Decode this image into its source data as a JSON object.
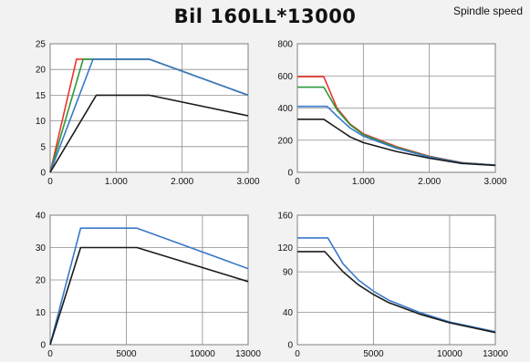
{
  "header": {
    "title": "Bil 160LL*13000",
    "corner_label": "Spindle speed"
  },
  "colors": {
    "red": "#e8352b",
    "green": "#2a9a3c",
    "blue": "#3a78c8",
    "black": "#1a1a1a",
    "grid": "#8c8c8c",
    "plot_bg": "#ffffff"
  },
  "chart_data": [
    {
      "type": "line",
      "title": "",
      "xlabel": "",
      "ylabel": "",
      "xlim": [
        0,
        3000
      ],
      "ylim": [
        0,
        25
      ],
      "xticks": [
        0,
        1000,
        2000,
        3000
      ],
      "xtick_labels": [
        "0",
        "1.000",
        "2.000",
        "3.000"
      ],
      "yticks": [
        0,
        5,
        10,
        15,
        20,
        25
      ],
      "ytick_labels": [
        "0",
        "5",
        "10",
        "15",
        "20",
        "25"
      ],
      "series": [
        {
          "color": "red",
          "x": [
            0,
            400,
            1500,
            3000
          ],
          "y": [
            0,
            22,
            22,
            15
          ]
        },
        {
          "color": "green",
          "x": [
            0,
            500,
            1500,
            3000
          ],
          "y": [
            0,
            22,
            22,
            15
          ]
        },
        {
          "color": "blue",
          "x": [
            0,
            650,
            1500,
            3000
          ],
          "y": [
            0,
            22,
            22,
            15
          ]
        },
        {
          "color": "black",
          "x": [
            0,
            700,
            1500,
            3000
          ],
          "y": [
            0,
            15,
            15,
            11
          ]
        }
      ]
    },
    {
      "type": "line",
      "title": "",
      "xlabel": "",
      "ylabel": "",
      "xlim": [
        0,
        3000
      ],
      "ylim": [
        0,
        800
      ],
      "xticks": [
        0,
        1000,
        2000,
        3000
      ],
      "xtick_labels": [
        "0",
        "1.000",
        "2.000",
        "3.000"
      ],
      "yticks": [
        0,
        200,
        400,
        600,
        800
      ],
      "ytick_labels": [
        "0",
        "200",
        "400",
        "600",
        "800"
      ],
      "series": [
        {
          "color": "red",
          "x": [
            0,
            400,
            600,
            800,
            1000,
            1500,
            2000,
            2500,
            3000
          ],
          "y": [
            595,
            595,
            400,
            300,
            240,
            160,
            100,
            60,
            45
          ]
        },
        {
          "color": "green",
          "x": [
            0,
            400,
            600,
            800,
            1000,
            1500,
            2000,
            2500,
            3000
          ],
          "y": [
            530,
            530,
            390,
            295,
            235,
            155,
            97,
            59,
            45
          ]
        },
        {
          "color": "blue",
          "x": [
            0,
            450,
            600,
            800,
            1000,
            1500,
            2000,
            2500,
            3000
          ],
          "y": [
            410,
            410,
            350,
            275,
            225,
            150,
            95,
            58,
            45
          ]
        },
        {
          "color": "black",
          "x": [
            0,
            400,
            600,
            800,
            1000,
            1500,
            2000,
            2500,
            3000
          ],
          "y": [
            330,
            330,
            275,
            220,
            185,
            130,
            88,
            55,
            43
          ]
        }
      ]
    },
    {
      "type": "line",
      "title": "",
      "xlabel": "",
      "ylabel": "",
      "xlim": [
        0,
        13000
      ],
      "ylim": [
        0,
        40
      ],
      "xticks": [
        0,
        5000,
        10000,
        13000
      ],
      "xtick_labels": [
        "0",
        "5000",
        "10000",
        "13000"
      ],
      "yticks": [
        0,
        10,
        20,
        30,
        40
      ],
      "ytick_labels": [
        "0",
        "10",
        "20",
        "30",
        "40"
      ],
      "series": [
        {
          "color": "blue",
          "x": [
            0,
            2000,
            5700,
            13000
          ],
          "y": [
            0,
            36,
            36,
            23.5
          ]
        },
        {
          "color": "black",
          "x": [
            0,
            2000,
            5700,
            13000
          ],
          "y": [
            0,
            30,
            30,
            19.5
          ]
        }
      ]
    },
    {
      "type": "line",
      "title": "",
      "xlabel": "",
      "ylabel": "",
      "xlim": [
        0,
        13000
      ],
      "ylim": [
        0,
        160
      ],
      "xticks": [
        0,
        5000,
        10000,
        13000
      ],
      "xtick_labels": [
        "0",
        "5000",
        "10000",
        "13000"
      ],
      "yticks": [
        0,
        40,
        90,
        120,
        160
      ],
      "ytick_labels": [
        "0",
        "40",
        "90",
        "120",
        "160"
      ],
      "series": [
        {
          "color": "blue",
          "x": [
            0,
            2000,
            3000,
            4000,
            5000,
            6000,
            8000,
            10000,
            13000
          ],
          "y": [
            132,
            132,
            100,
            80,
            66,
            55,
            40,
            28,
            16
          ]
        },
        {
          "color": "black",
          "x": [
            0,
            1800,
            3000,
            4000,
            5000,
            6000,
            8000,
            10000,
            13000
          ],
          "y": [
            115,
            115,
            90,
            74,
            62,
            52,
            38,
            27,
            15
          ]
        }
      ]
    }
  ]
}
